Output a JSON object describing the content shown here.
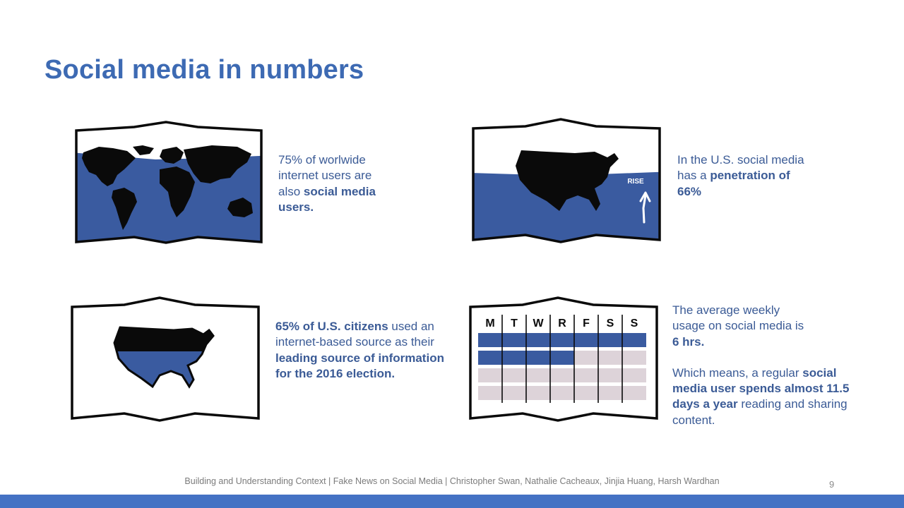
{
  "slide": {
    "title": "Social media in numbers",
    "footer": "Building and Understanding Context | Fake News on Social Media | Christopher Swan, Nathalie Cacheaux, Jinjia Huang, Harsh Wardhan",
    "page_number": "9"
  },
  "colors": {
    "title": "#3d6ab3",
    "text": "#3b5b96",
    "fill_blue": "#3a5ba0",
    "calendar_empty": "#ddd3d9",
    "accent_bar": "#4472c4"
  },
  "stats": [
    {
      "icon": "world-map-icon",
      "level": 0.75,
      "parts": [
        {
          "t": "75% of worlwide internet users are also ",
          "b": false
        },
        {
          "t": "social media users.",
          "b": true
        }
      ]
    },
    {
      "icon": "us-map-rise-icon",
      "level": 0.66,
      "badge": "RISE",
      "parts": [
        {
          "t": "In the U.S. social media has a ",
          "b": false
        },
        {
          "t": "penetration of 66%",
          "b": true
        }
      ]
    },
    {
      "icon": "us-map-half-icon",
      "level": 0.65,
      "parts": [
        {
          "t": "65% of U.S. citizens",
          "b": true
        },
        {
          "t": " used an internet-based source as their ",
          "b": false
        },
        {
          "t": "leading source of information for the 2016 election.",
          "b": true
        }
      ]
    },
    {
      "icon": "weekly-calendar-icon",
      "days": [
        "M",
        "T",
        "W",
        "R",
        "F",
        "S",
        "S"
      ],
      "filled_rows": [
        7,
        4,
        0,
        0
      ],
      "parts": [
        {
          "t": "The average weekly usage on social media is ",
          "b": false
        },
        {
          "t": "6 hrs.",
          "b": true
        }
      ],
      "parts2": [
        {
          "t": "Which means, a regular ",
          "b": false
        },
        {
          "t": "social media user spends almost 11.5 days a year",
          "b": true
        },
        {
          "t": " reading and sharing content.",
          "b": false
        }
      ]
    }
  ]
}
